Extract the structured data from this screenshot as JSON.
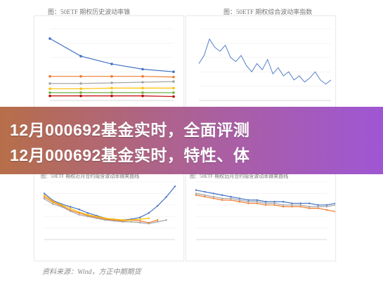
{
  "captions": {
    "top_left": "图：50ETF 期权历史波动率锥",
    "top_right": "图：50ETF 期权综合波动率指数",
    "bottom_left": "图：50ETF 期权近月合约隐含波动率微笑曲线",
    "bottom_right": "图：50ETF 期权远月合约隐含波动率微笑曲线"
  },
  "banner": {
    "line1": "12月000692基金实时，全面评测",
    "line2": "12月000692基金实时，特性、体"
  },
  "source": "资料来源：Wind，方正中期期货",
  "colors": {
    "blue": "#4472c4",
    "orange": "#ed7d31",
    "gray": "#a5a5a5",
    "yellow": "#ffc000",
    "green": "#70ad47",
    "banner_from": "#b0623a",
    "banner_to": "#9648d0"
  },
  "chart_data": [
    {
      "type": "line",
      "series": [
        {
          "values": [
            95,
            68,
            56,
            48,
            44
          ]
        },
        {
          "values": [
            37,
            37,
            37,
            37,
            36
          ]
        },
        {
          "values": [
            26,
            26,
            27,
            28,
            29
          ]
        },
        {
          "values": [
            18,
            18,
            19,
            19,
            19
          ]
        },
        {
          "values": [
            12,
            12,
            12,
            12,
            12
          ]
        },
        {
          "values": [
            7,
            7,
            7,
            7,
            6
          ]
        }
      ]
    },
    {
      "type": "line",
      "series": [
        {
          "values": [
            18,
            22,
            30,
            26,
            24,
            27,
            21,
            19,
            22,
            17,
            14,
            18,
            15,
            20,
            13,
            16,
            12,
            14,
            10,
            12,
            9,
            11,
            14,
            10,
            8,
            10
          ]
        }
      ]
    },
    {
      "type": "line",
      "series": [
        {
          "values": [
            52,
            44,
            40,
            37,
            34,
            30,
            27,
            24,
            23,
            22,
            23,
            25,
            30,
            38,
            48,
            60
          ]
        },
        {
          "values": [
            48,
            42,
            38,
            33,
            30,
            27,
            25,
            23,
            22,
            21,
            22,
            21,
            19,
            22
          ]
        },
        {
          "values": [
            46,
            40,
            37,
            32,
            28,
            26,
            24,
            22,
            21,
            20,
            20,
            19,
            18,
            20,
            22
          ]
        },
        {
          "values": [
            50,
            43,
            39,
            35,
            31,
            28,
            26,
            24,
            23,
            22,
            22,
            23,
            24
          ]
        }
      ]
    },
    {
      "type": "line",
      "series": [
        {
          "values": [
            30,
            29,
            28,
            27,
            26,
            25,
            24,
            24,
            23,
            23,
            23,
            22,
            22,
            22,
            21,
            21,
            22,
            22,
            23,
            24
          ]
        },
        {
          "values": [
            27,
            26,
            25,
            24,
            24,
            23,
            22,
            22,
            21,
            21,
            20,
            20,
            20,
            19,
            19,
            18,
            17,
            14,
            8,
            0
          ]
        },
        {
          "values": [
            28,
            27,
            26,
            25,
            25,
            24,
            23,
            23,
            22,
            22,
            21,
            21,
            21,
            20,
            20,
            20,
            21,
            22
          ]
        }
      ]
    }
  ]
}
